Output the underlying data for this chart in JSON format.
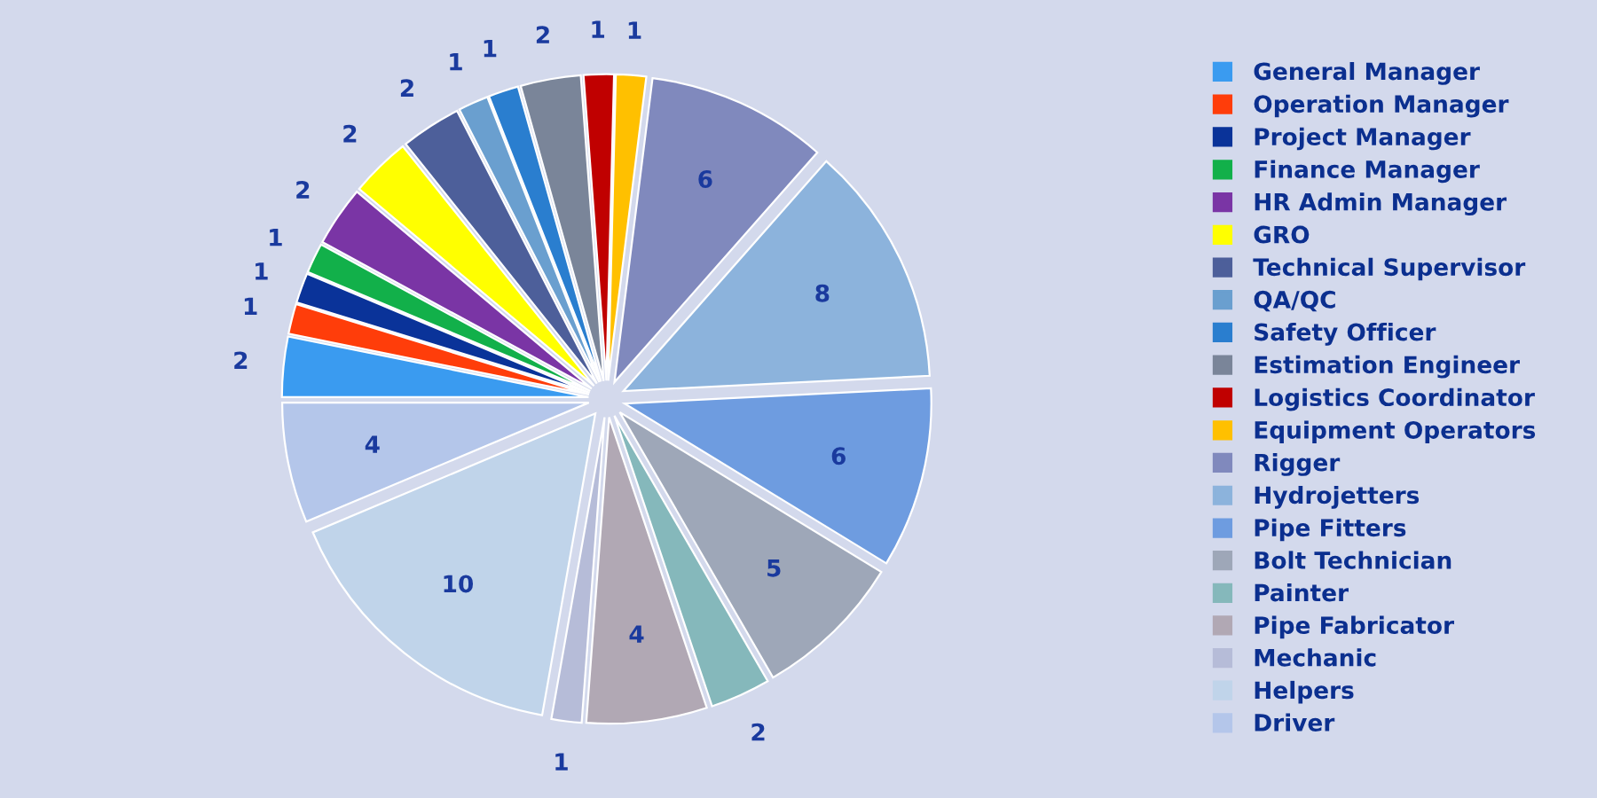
{
  "chart_data": {
    "type": "pie",
    "categories": [
      "General Manager",
      "Operation Manager",
      "Project Manager",
      "Finance Manager",
      "HR Admin Manager",
      "GRO",
      "Technical Supervisor",
      "QA/QC",
      "Safety Officer",
      "Estimation Engineer",
      "Logistics Coordinator",
      "Equipment Operators",
      "Rigger",
      "Hydrojetters",
      "Pipe Fitters",
      "Bolt Technician",
      "Painter",
      "Pipe Fabricator",
      "Mechanic",
      "Helpers",
      "Driver"
    ],
    "values": [
      2,
      1,
      1,
      1,
      2,
      2,
      2,
      1,
      1,
      2,
      1,
      1,
      6,
      8,
      6,
      5,
      2,
      4,
      1,
      10,
      4
    ],
    "colors": [
      "#3a9bf0",
      "#ff3d0a",
      "#0a3399",
      "#12b04a",
      "#7a35a5",
      "#ffff00",
      "#4d5f9a",
      "#6a9fcf",
      "#2a7ecf",
      "#7a8599",
      "#c00000",
      "#ffc000",
      "#8089bd",
      "#8cb3dc",
      "#6e9ce0",
      "#9ea7b8",
      "#85b8bb",
      "#b1a8b4",
      "#b6bcd8",
      "#c0d4ea",
      "#b4c6ea"
    ],
    "data_labels": true,
    "legend": "right"
  }
}
